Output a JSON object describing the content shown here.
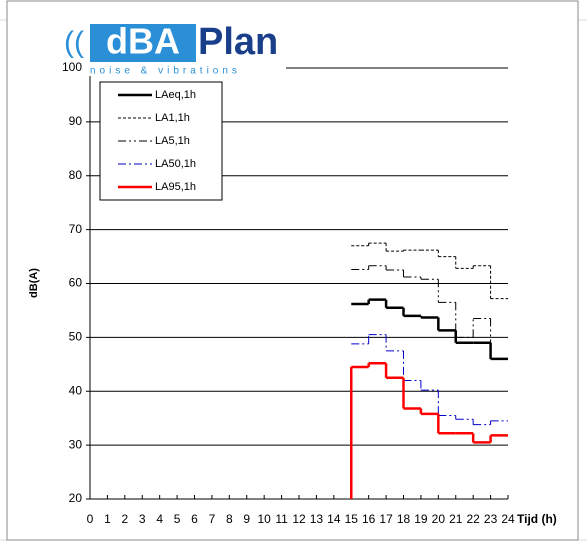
{
  "chart_data": {
    "type": "step",
    "x_label": "Tijd (h)",
    "y_label": "dB(A)",
    "x": [
      15,
      16,
      17,
      18,
      19,
      20,
      21,
      22,
      23
    ],
    "xlim": [
      0,
      24
    ],
    "xticks": [
      0,
      1,
      2,
      3,
      4,
      5,
      6,
      7,
      8,
      9,
      10,
      11,
      12,
      13,
      14,
      15,
      16,
      17,
      18,
      19,
      20,
      21,
      22,
      23,
      24
    ],
    "ylim": [
      20,
      100
    ],
    "yticks": [
      20,
      30,
      40,
      50,
      60,
      70,
      80,
      90,
      100
    ],
    "grid": true,
    "legend": "top-left",
    "series": [
      {
        "name": "LAeq,1h",
        "color": "#000000",
        "dash": "solid",
        "width": 2.5,
        "values": [
          56.2,
          57,
          55.5,
          54,
          53.7,
          51.3,
          49,
          49,
          46
        ]
      },
      {
        "name": "LA1,1h",
        "color": "#000000",
        "dash": "dashed",
        "width": 1,
        "values": [
          67,
          67.5,
          66,
          66.2,
          66.2,
          65,
          62.8,
          63.3,
          57.2
        ]
      },
      {
        "name": "LA5,1h",
        "color": "#000000",
        "dash": "dash-dot-dot",
        "width": 1,
        "values": [
          62.6,
          63.3,
          62.5,
          61.2,
          60.8,
          56.5,
          50,
          53.5,
          46
        ]
      },
      {
        "name": "LA50,1h",
        "color": "#0000cc",
        "dash": "dash-dot",
        "width": 1,
        "values": [
          48.8,
          50.5,
          47.5,
          42,
          40.2,
          35.5,
          34.8,
          33.8,
          34.5
        ]
      },
      {
        "name": "LA95,1h",
        "color": "#ff0000",
        "dash": "solid",
        "width": 2.5,
        "values": [
          44.5,
          45.2,
          42.5,
          36.8,
          35.8,
          32.2,
          32.2,
          30.5,
          31.8
        ]
      }
    ]
  },
  "logo": {
    "brand_a": "dBA",
    "brand_b": "Plan",
    "tagline": "noise & vibrations"
  }
}
